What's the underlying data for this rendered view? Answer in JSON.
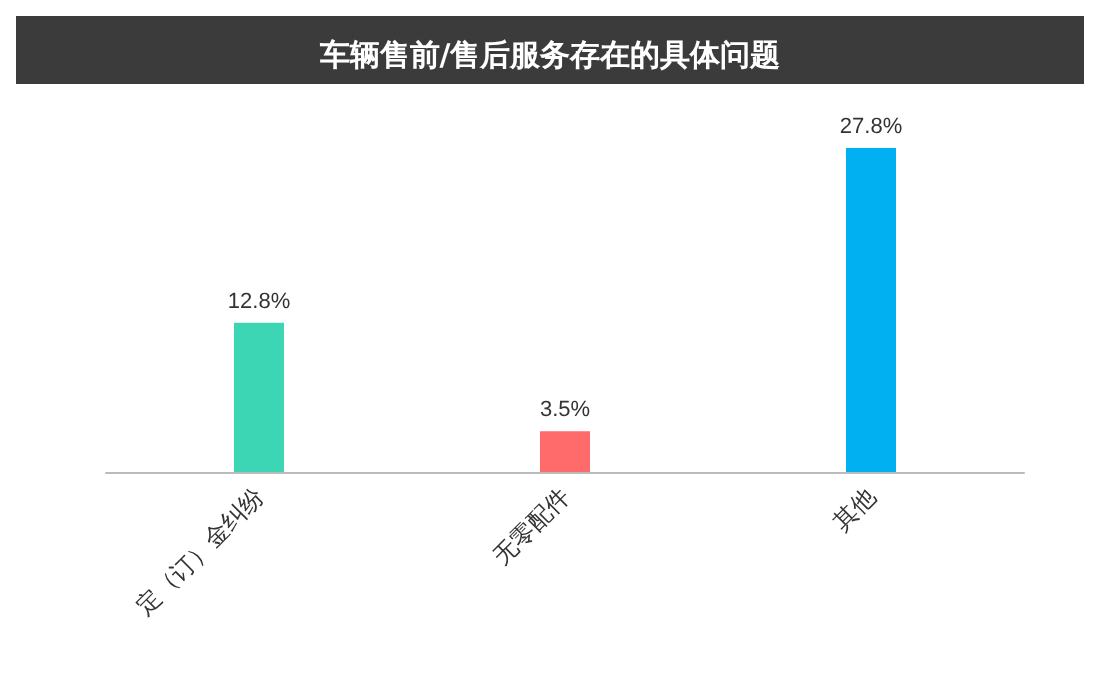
{
  "chart_data": {
    "type": "bar",
    "title": "车辆售前/售后服务存在的具体问题",
    "categories": [
      "定（订）金纠纷",
      "无零配件",
      "其他"
    ],
    "values": [
      12.8,
      3.5,
      27.8
    ],
    "colors": [
      "#3dd6b5",
      "#ff6b6b",
      "#00b0f0"
    ],
    "value_labels": [
      "12.8%",
      "3.5%",
      "27.8%"
    ],
    "tick_labels": "x"
  }
}
